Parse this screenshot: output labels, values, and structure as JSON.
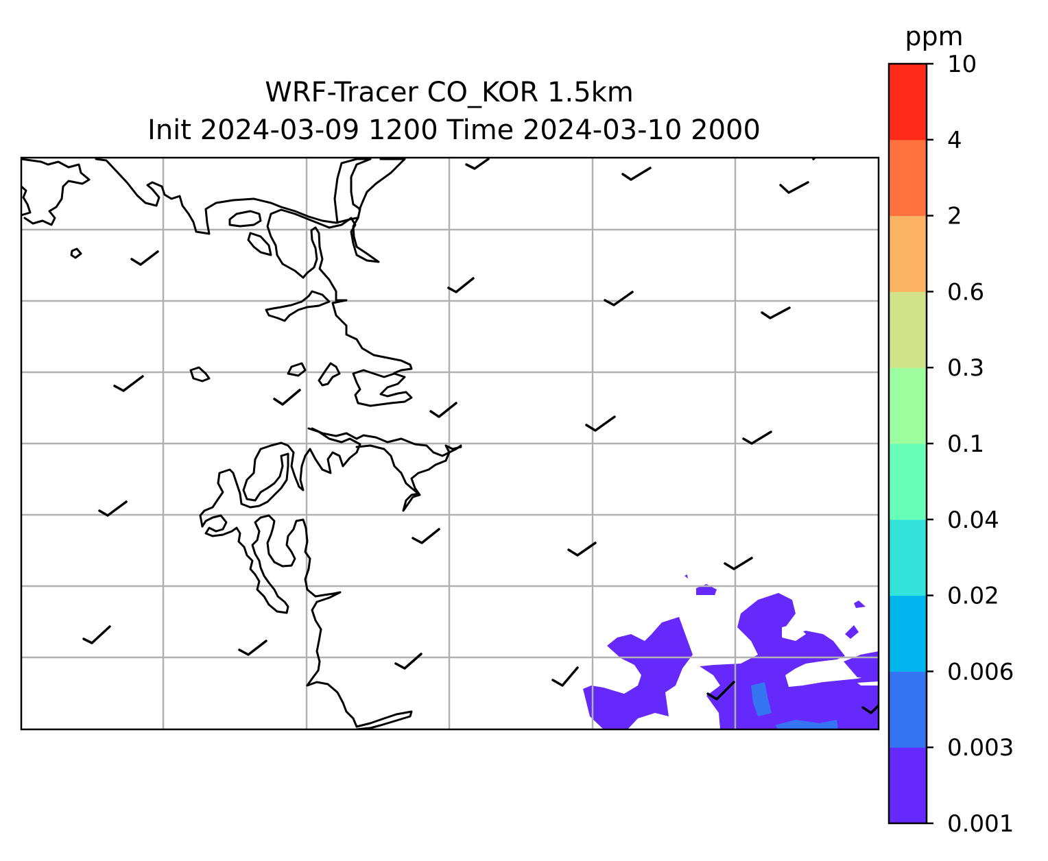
{
  "map": {
    "title_line1": "WRF-Tracer CO_KOR 1.5km",
    "title_line2": "Init 2024-03-09 1200 Time 2024-03-10 2000",
    "gridlines": true,
    "grid_color": "#b0b0b0",
    "coastline_color": "#000000",
    "wind_barbs": true
  },
  "colorbar": {
    "unit": "ppm",
    "levels": [
      "0.001",
      "0.003",
      "0.006",
      "0.02",
      "0.04",
      "0.1",
      "0.3",
      "0.6",
      "2",
      "4",
      "10"
    ],
    "colors": [
      "#6629fc",
      "#3575f2",
      "#00b5ec",
      "#33e2d8",
      "#68feb8",
      "#9dfe9f",
      "#d0e388",
      "#fdb364",
      "#ff7240",
      "#ff2a18"
    ]
  },
  "field": {
    "name": "CO",
    "fill_color": "#6629fc",
    "fill_level_range": [
      "0.001",
      "0.003"
    ],
    "inner_color": "#3575f2",
    "inner_level_range": [
      "0.003",
      "0.006"
    ],
    "region": "bottom-right"
  }
}
